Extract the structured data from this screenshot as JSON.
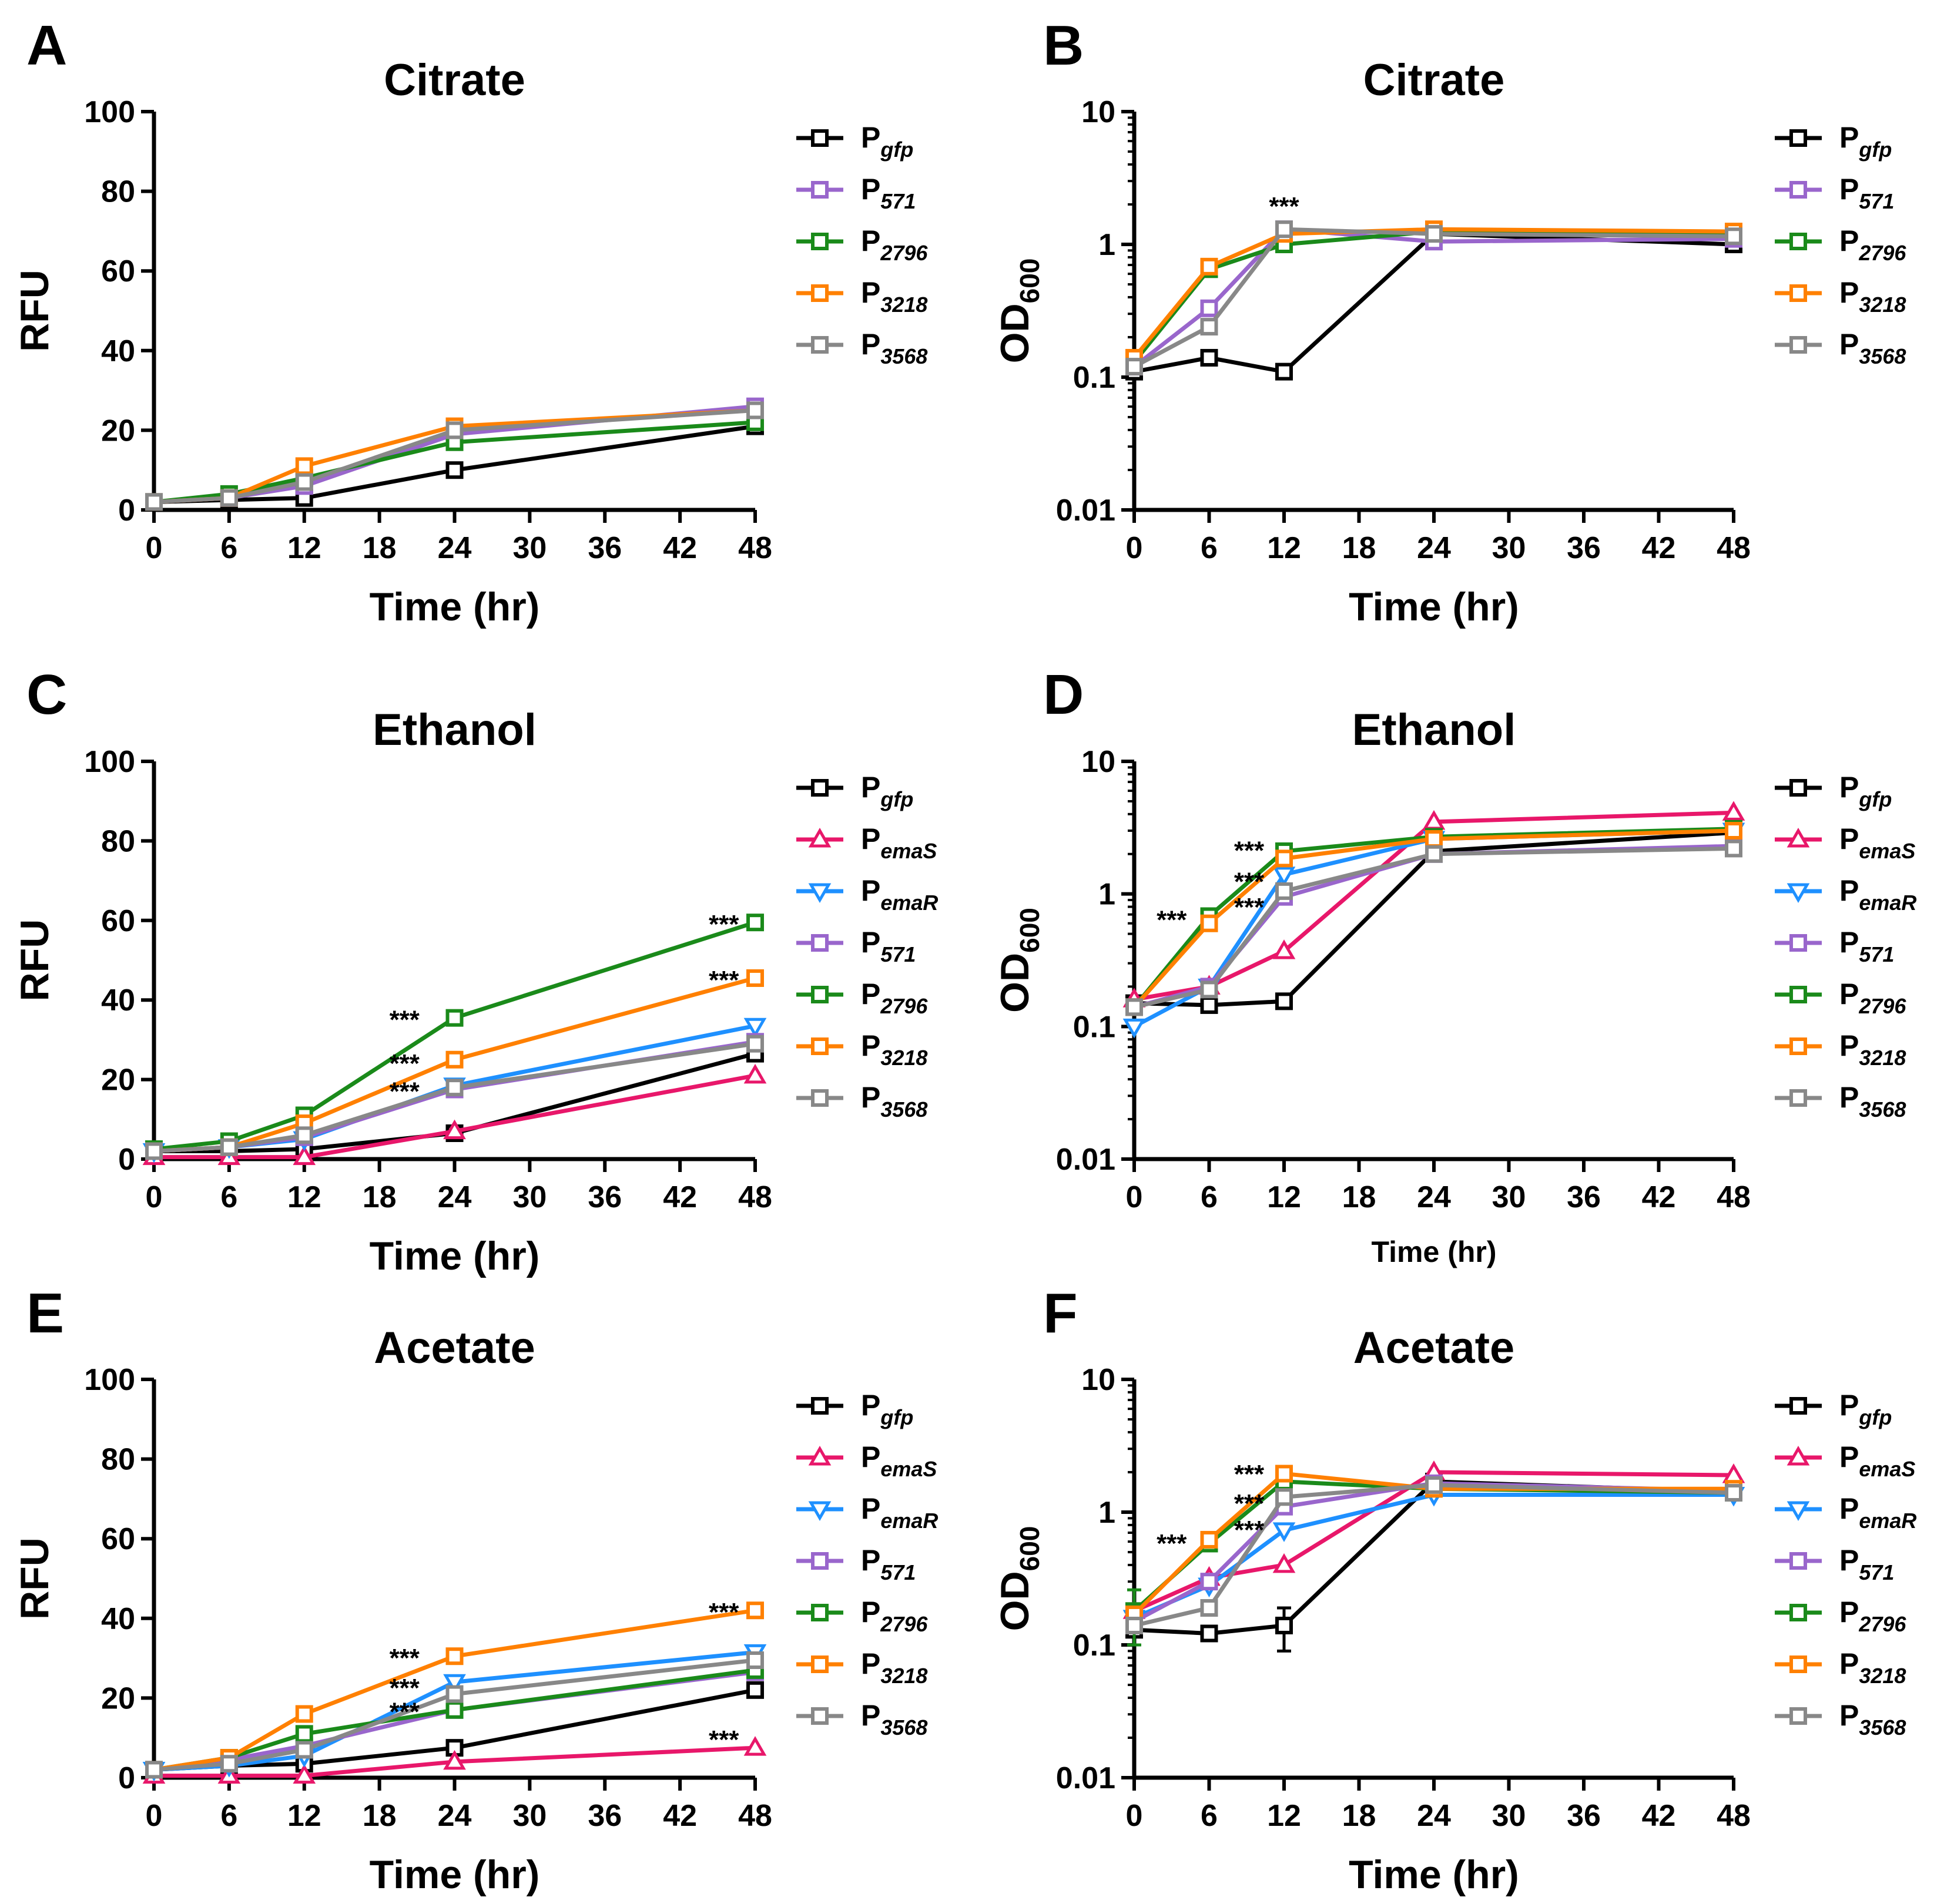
{
  "colors": {
    "P_gfp": "#000000",
    "P_emaS": "#e8176a",
    "P_emaR": "#1e90ff",
    "P_571": "#9966cc",
    "P_2796": "#1a8a1a",
    "P_3218": "#ff8000",
    "P_3568": "#888888"
  },
  "chart_data": [
    {
      "panel": "A",
      "type": "line",
      "title": "Citrate",
      "xlabel": "Time (hr)",
      "ylabel": "RFU",
      "ylabel_sub": "",
      "xlabel_size": "large",
      "yscale": "linear",
      "xlim": [
        0,
        48
      ],
      "ylim": [
        0,
        100
      ],
      "xticks": [
        0,
        6,
        12,
        18,
        24,
        30,
        36,
        42,
        48
      ],
      "yticks": [
        0,
        20,
        40,
        60,
        80,
        100
      ],
      "ytick_labels": [
        "0",
        "20",
        "40",
        "60",
        "80",
        "100"
      ],
      "legend_position": "right",
      "series": [
        {
          "key": "P_gfp",
          "name": "P",
          "sub": "gfp",
          "marker": "square",
          "x": [
            0,
            6,
            12,
            24,
            48
          ],
          "y": [
            2,
            2.5,
            3,
            10,
            21
          ]
        },
        {
          "key": "P_571",
          "name": "P",
          "sub": "571",
          "marker": "square",
          "x": [
            0,
            6,
            12,
            24,
            48
          ],
          "y": [
            2,
            3,
            6,
            19,
            26
          ]
        },
        {
          "key": "P_2796",
          "name": "P",
          "sub": "2796",
          "marker": "square",
          "x": [
            0,
            6,
            12,
            24,
            48
          ],
          "y": [
            2,
            4,
            8,
            17,
            22
          ]
        },
        {
          "key": "P_3218",
          "name": "P",
          "sub": "3218",
          "marker": "square",
          "x": [
            0,
            6,
            12,
            24,
            48
          ],
          "y": [
            2,
            3,
            11,
            21,
            25
          ]
        },
        {
          "key": "P_3568",
          "name": "P",
          "sub": "3568",
          "marker": "square",
          "x": [
            0,
            6,
            12,
            24,
            48
          ],
          "y": [
            2,
            3,
            7,
            20,
            25
          ]
        }
      ],
      "annotations": []
    },
    {
      "panel": "B",
      "type": "line",
      "title": "Citrate",
      "xlabel": "Time (hr)",
      "ylabel": "OD",
      "ylabel_sub": "600",
      "xlabel_size": "large",
      "yscale": "log",
      "xlim": [
        0,
        48
      ],
      "ylim": [
        0.01,
        10
      ],
      "xticks": [
        0,
        6,
        12,
        18,
        24,
        30,
        36,
        42,
        48
      ],
      "yticks": [
        0.01,
        0.1,
        1,
        10
      ],
      "ytick_labels": [
        "0.01",
        "0.1",
        "1",
        "10"
      ],
      "legend_position": "right",
      "series": [
        {
          "key": "P_gfp",
          "name": "P",
          "sub": "gfp",
          "marker": "square",
          "x": [
            0,
            6,
            12,
            24,
            48
          ],
          "y": [
            0.11,
            0.14,
            0.11,
            1.2,
            1.0
          ]
        },
        {
          "key": "P_571",
          "name": "P",
          "sub": "571",
          "marker": "square",
          "x": [
            0,
            6,
            12,
            24,
            48
          ],
          "y": [
            0.12,
            0.33,
            1.3,
            1.05,
            1.1
          ]
        },
        {
          "key": "P_2796",
          "name": "P",
          "sub": "2796",
          "marker": "square",
          "x": [
            0,
            6,
            12,
            24,
            48
          ],
          "y": [
            0.13,
            0.65,
            1.0,
            1.25,
            1.2
          ]
        },
        {
          "key": "P_3218",
          "name": "P",
          "sub": "3218",
          "marker": "square",
          "x": [
            0,
            6,
            12,
            24,
            48
          ],
          "y": [
            0.14,
            0.68,
            1.2,
            1.3,
            1.25
          ]
        },
        {
          "key": "P_3568",
          "name": "P",
          "sub": "3568",
          "marker": "square",
          "x": [
            0,
            6,
            12,
            24,
            48
          ],
          "y": [
            0.12,
            0.24,
            1.3,
            1.2,
            1.15
          ]
        }
      ],
      "annotations": [
        {
          "text": "***",
          "x": 12,
          "y": 2.0
        }
      ]
    },
    {
      "panel": "C",
      "type": "line",
      "title": "Ethanol",
      "xlabel": "Time (hr)",
      "ylabel": "RFU",
      "ylabel_sub": "",
      "xlabel_size": "large",
      "yscale": "linear",
      "xlim": [
        0,
        48
      ],
      "ylim": [
        0,
        100
      ],
      "xticks": [
        0,
        6,
        12,
        18,
        24,
        30,
        36,
        42,
        48
      ],
      "yticks": [
        0,
        20,
        40,
        60,
        80,
        100
      ],
      "ytick_labels": [
        "0",
        "20",
        "40",
        "60",
        "80",
        "100"
      ],
      "legend_position": "right",
      "series": [
        {
          "key": "P_gfp",
          "name": "P",
          "sub": "gfp",
          "marker": "square",
          "x": [
            0,
            6,
            12,
            24,
            48
          ],
          "y": [
            2,
            2,
            2.5,
            6.5,
            26.5
          ]
        },
        {
          "key": "P_emaS",
          "name": "P",
          "sub": "emaS",
          "marker": "triangle-up",
          "x": [
            0,
            6,
            12,
            24,
            48
          ],
          "y": [
            0.5,
            0.5,
            0.5,
            7,
            21
          ]
        },
        {
          "key": "P_emaR",
          "name": "P",
          "sub": "emaR",
          "marker": "triangle-down",
          "x": [
            0,
            6,
            12,
            24,
            48
          ],
          "y": [
            2,
            3,
            5,
            18.5,
            33.5
          ]
        },
        {
          "key": "P_571",
          "name": "P",
          "sub": "571",
          "marker": "square",
          "x": [
            0,
            6,
            12,
            24,
            48
          ],
          "y": [
            2,
            3,
            5.5,
            17.5,
            29.5
          ]
        },
        {
          "key": "P_2796",
          "name": "P",
          "sub": "2796",
          "marker": "square",
          "x": [
            0,
            6,
            12,
            24,
            48
          ],
          "y": [
            2.5,
            4.5,
            11,
            35.5,
            59.5
          ]
        },
        {
          "key": "P_3218",
          "name": "P",
          "sub": "3218",
          "marker": "square",
          "x": [
            0,
            6,
            12,
            24,
            48
          ],
          "y": [
            2,
            3,
            9,
            25,
            45.5
          ]
        },
        {
          "key": "P_3568",
          "name": "P",
          "sub": "3568",
          "marker": "square",
          "x": [
            0,
            6,
            12,
            24,
            48
          ],
          "y": [
            2,
            3,
            6,
            18,
            29
          ]
        }
      ],
      "annotations": [
        {
          "text": "***",
          "x": 20,
          "y": 35.5
        },
        {
          "text": "***",
          "x": 20,
          "y": 24.5
        },
        {
          "text": "***",
          "x": 20,
          "y": 17.5
        },
        {
          "text": "***",
          "x": 45.5,
          "y": 59.5
        },
        {
          "text": "***",
          "x": 45.5,
          "y": 45.5
        }
      ]
    },
    {
      "panel": "D",
      "type": "line",
      "title": "Ethanol",
      "xlabel": "Time (hr)",
      "ylabel": "OD",
      "ylabel_sub": "600",
      "xlabel_size": "small",
      "yscale": "log",
      "xlim": [
        0,
        48
      ],
      "ylim": [
        0.01,
        10
      ],
      "xticks": [
        0,
        6,
        12,
        18,
        24,
        30,
        36,
        42,
        48
      ],
      "yticks": [
        0.01,
        0.1,
        1,
        10
      ],
      "ytick_labels": [
        "0.01",
        "0.1",
        "1",
        "10"
      ],
      "legend_position": "right",
      "series": [
        {
          "key": "P_gfp",
          "name": "P",
          "sub": "gfp",
          "marker": "square",
          "x": [
            0,
            6,
            12,
            24,
            48
          ],
          "y": [
            0.15,
            0.145,
            0.155,
            2.1,
            2.9
          ]
        },
        {
          "key": "P_emaS",
          "name": "P",
          "sub": "emaS",
          "marker": "triangle-up",
          "x": [
            0,
            6,
            12,
            24,
            48
          ],
          "y": [
            0.16,
            0.2,
            0.37,
            3.5,
            4.1
          ]
        },
        {
          "key": "P_emaR",
          "name": "P",
          "sub": "emaR",
          "marker": "triangle-down",
          "x": [
            0,
            6,
            12,
            24,
            48
          ],
          "y": [
            0.1,
            0.2,
            1.4,
            2.6,
            3.0
          ]
        },
        {
          "key": "P_571",
          "name": "P",
          "sub": "571",
          "marker": "square",
          "x": [
            0,
            6,
            12,
            24,
            48
          ],
          "y": [
            0.14,
            0.2,
            0.95,
            2.0,
            2.3
          ]
        },
        {
          "key": "P_2796",
          "name": "P",
          "sub": "2796",
          "marker": "square",
          "x": [
            0,
            6,
            12,
            24,
            48
          ],
          "y": [
            0.14,
            0.68,
            2.1,
            2.7,
            3.1
          ]
        },
        {
          "key": "P_3218",
          "name": "P",
          "sub": "3218",
          "marker": "square",
          "x": [
            0,
            6,
            12,
            24,
            48
          ],
          "y": [
            0.14,
            0.6,
            1.85,
            2.6,
            3.0
          ]
        },
        {
          "key": "P_3568",
          "name": "P",
          "sub": "3568",
          "marker": "square",
          "x": [
            0,
            6,
            12,
            24,
            48
          ],
          "y": [
            0.14,
            0.19,
            1.05,
            2.0,
            2.2
          ]
        }
      ],
      "annotations": [
        {
          "text": "***",
          "x": 3,
          "y": 0.66
        },
        {
          "text": "***",
          "x": 9.2,
          "y": 2.2
        },
        {
          "text": "***",
          "x": 9.2,
          "y": 1.28
        },
        {
          "text": "***",
          "x": 9.2,
          "y": 0.82
        }
      ]
    },
    {
      "panel": "E",
      "type": "line",
      "title": "Acetate",
      "xlabel": "Time (hr)",
      "ylabel": "RFU",
      "ylabel_sub": "",
      "xlabel_size": "large",
      "yscale": "linear",
      "xlim": [
        0,
        48
      ],
      "ylim": [
        0,
        100
      ],
      "xticks": [
        0,
        6,
        12,
        18,
        24,
        30,
        36,
        42,
        48
      ],
      "yticks": [
        0,
        20,
        40,
        60,
        80,
        100
      ],
      "ytick_labels": [
        "0",
        "20",
        "40",
        "60",
        "80",
        "100"
      ],
      "legend_position": "right",
      "series": [
        {
          "key": "P_gfp",
          "name": "P",
          "sub": "gfp",
          "marker": "square",
          "x": [
            0,
            6,
            12,
            24,
            48
          ],
          "y": [
            2,
            3,
            3.5,
            7.5,
            22
          ]
        },
        {
          "key": "P_emaS",
          "name": "P",
          "sub": "emaS",
          "marker": "triangle-up",
          "x": [
            0,
            6,
            12,
            24,
            48
          ],
          "y": [
            0.5,
            0.5,
            0.5,
            4,
            7.5
          ]
        },
        {
          "key": "P_emaR",
          "name": "P",
          "sub": "emaR",
          "marker": "triangle-down",
          "x": [
            0,
            6,
            12,
            24,
            48
          ],
          "y": [
            2,
            3,
            5.5,
            24,
            31.5
          ]
        },
        {
          "key": "P_571",
          "name": "P",
          "sub": "571",
          "marker": "square",
          "x": [
            0,
            6,
            12,
            24,
            48
          ],
          "y": [
            2,
            4.5,
            8,
            17,
            26.5
          ]
        },
        {
          "key": "P_2796",
          "name": "P",
          "sub": "2796",
          "marker": "square",
          "x": [
            0,
            6,
            12,
            24,
            48
          ],
          "y": [
            2,
            5,
            11,
            17,
            27
          ]
        },
        {
          "key": "P_3218",
          "name": "P",
          "sub": "3218",
          "marker": "square",
          "x": [
            0,
            6,
            12,
            24,
            48
          ],
          "y": [
            2,
            5,
            16,
            30.5,
            42
          ]
        },
        {
          "key": "P_3568",
          "name": "P",
          "sub": "3568",
          "marker": "square",
          "x": [
            0,
            6,
            12,
            24,
            48
          ],
          "y": [
            2,
            3.5,
            7,
            21,
            29.5
          ]
        }
      ],
      "annotations": [
        {
          "text": "***",
          "x": 20,
          "y": 30.5
        },
        {
          "text": "***",
          "x": 20,
          "y": 23
        },
        {
          "text": "***",
          "x": 20,
          "y": 17
        },
        {
          "text": "***",
          "x": 45.5,
          "y": 42
        },
        {
          "text": "***",
          "x": 45.5,
          "y": 10
        }
      ]
    },
    {
      "panel": "F",
      "type": "line",
      "title": "Acetate",
      "xlabel": "Time (hr)",
      "ylabel": "OD",
      "ylabel_sub": "600",
      "xlabel_size": "large",
      "yscale": "log",
      "xlim": [
        0,
        48
      ],
      "ylim": [
        0.01,
        10
      ],
      "xticks": [
        0,
        6,
        12,
        18,
        24,
        30,
        36,
        42,
        48
      ],
      "yticks": [
        0.01,
        0.1,
        1,
        10
      ],
      "ytick_labels": [
        "0.01",
        "0.1",
        "1",
        "10"
      ],
      "legend_position": "right",
      "series": [
        {
          "key": "P_gfp",
          "name": "P",
          "sub": "gfp",
          "marker": "square",
          "x": [
            0,
            6,
            12,
            24,
            48
          ],
          "y": [
            0.13,
            0.122,
            0.14,
            1.7,
            1.42
          ],
          "err": [
            0,
            0,
            0.05,
            0,
            0
          ]
        },
        {
          "key": "P_emaS",
          "name": "P",
          "sub": "emaS",
          "marker": "triangle-up",
          "x": [
            0,
            6,
            12,
            24,
            48
          ],
          "y": [
            0.18,
            0.32,
            0.4,
            2.0,
            1.9
          ]
        },
        {
          "key": "P_emaR",
          "name": "P",
          "sub": "emaR",
          "marker": "triangle-down",
          "x": [
            0,
            6,
            12,
            24,
            48
          ],
          "y": [
            0.16,
            0.28,
            0.73,
            1.35,
            1.35
          ]
        },
        {
          "key": "P_571",
          "name": "P",
          "sub": "571",
          "marker": "square",
          "x": [
            0,
            6,
            12,
            24,
            48
          ],
          "y": [
            0.15,
            0.3,
            1.1,
            1.65,
            1.45
          ]
        },
        {
          "key": "P_2796",
          "name": "P",
          "sub": "2796",
          "marker": "square",
          "x": [
            0,
            6,
            12,
            24,
            48
          ],
          "y": [
            0.18,
            0.58,
            1.7,
            1.5,
            1.4
          ],
          "err": [
            0.08,
            0,
            0,
            0,
            0
          ]
        },
        {
          "key": "P_3218",
          "name": "P",
          "sub": "3218",
          "marker": "square",
          "x": [
            0,
            6,
            12,
            24,
            48
          ],
          "y": [
            0.17,
            0.62,
            1.95,
            1.5,
            1.5
          ]
        },
        {
          "key": "P_3568",
          "name": "P",
          "sub": "3568",
          "marker": "square",
          "x": [
            0,
            6,
            12,
            24,
            48
          ],
          "y": [
            0.14,
            0.19,
            1.3,
            1.6,
            1.4
          ]
        }
      ],
      "annotations": [
        {
          "text": "***",
          "x": 3,
          "y": 0.6
        },
        {
          "text": "***",
          "x": 9.2,
          "y": 2.0
        },
        {
          "text": "***",
          "x": 9.2,
          "y": 1.2
        },
        {
          "text": "***",
          "x": 9.2,
          "y": 0.76
        }
      ]
    }
  ]
}
